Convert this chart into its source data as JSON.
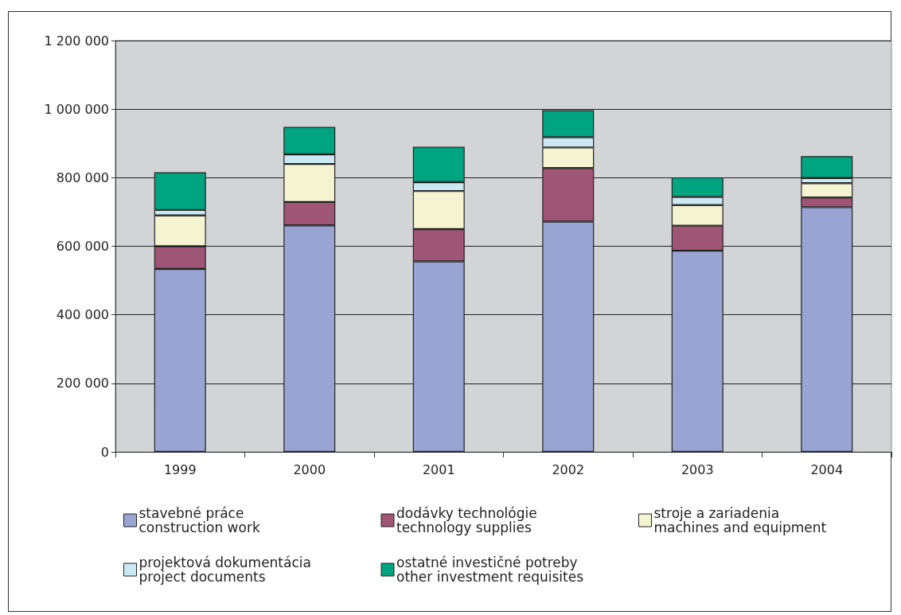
{
  "chart_data": {
    "type": "bar",
    "stacked": true,
    "categories": [
      "1999",
      "2000",
      "2001",
      "2002",
      "2003",
      "2004"
    ],
    "series": [
      {
        "name": "stavebné práce\nconstruction work",
        "color": "#99a4d2",
        "values": [
          534000,
          661000,
          556000,
          672000,
          587000,
          714000
        ]
      },
      {
        "name": "dodávky technológie\ntechnology supplies",
        "color": "#9f5575",
        "values": [
          66000,
          68000,
          94000,
          156000,
          73000,
          28000
        ]
      },
      {
        "name": "stroje a zariadenia\nmachines and equipment",
        "color": "#f4f4d3",
        "values": [
          90000,
          111000,
          111000,
          60000,
          60000,
          42000
        ]
      },
      {
        "name": "projektová dokumentácia\nproject documents",
        "color": "#cae9f3",
        "values": [
          16000,
          28000,
          26000,
          30000,
          24000,
          15000
        ]
      },
      {
        "name": "ostatné investičné potreby\nother investment requisites",
        "color": "#00a480",
        "values": [
          110000,
          80000,
          103000,
          79000,
          57000,
          64000
        ]
      }
    ],
    "ylim": [
      0,
      1200000
    ],
    "yticks": [
      0,
      200000,
      400000,
      600000,
      800000,
      1000000,
      1200000
    ],
    "grid": "y",
    "legend": "bottom"
  }
}
